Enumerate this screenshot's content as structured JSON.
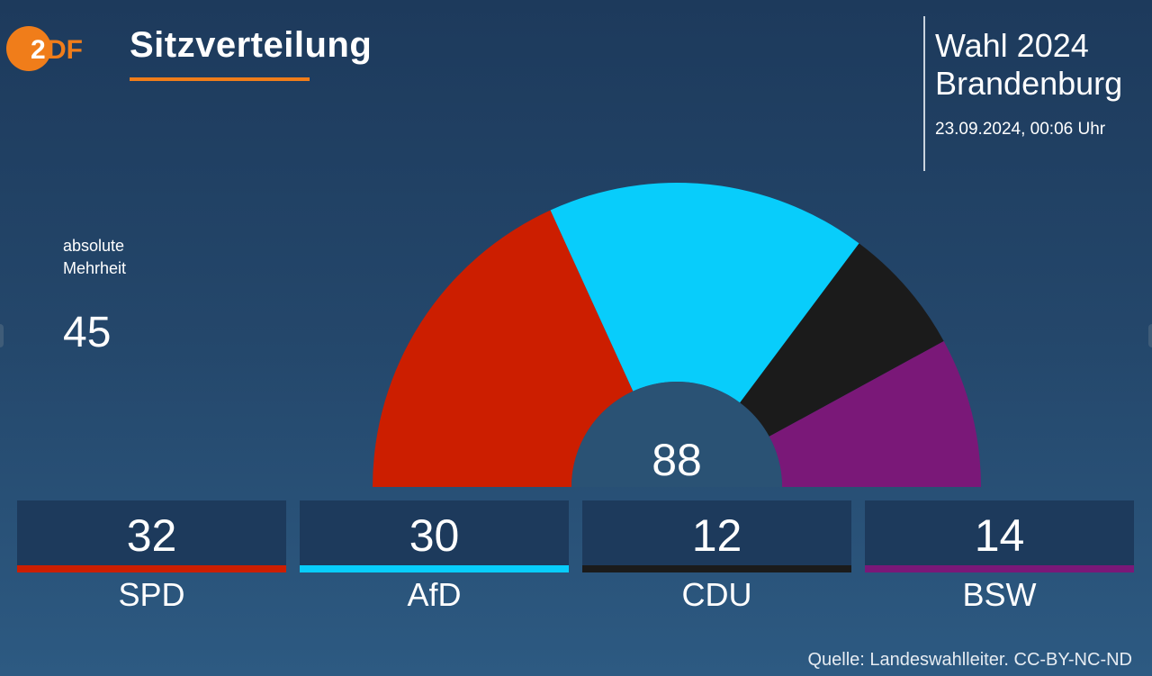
{
  "header": {
    "logo_text": "ZDF",
    "title": "Sitzverteilung",
    "election_line1": "Wahl 2024",
    "election_line2": "Brandenburg",
    "datetime": "23.09.2024, 00:06 Uhr"
  },
  "majority": {
    "label_line1": "absolute",
    "label_line2": "Mehrheit",
    "value": "45"
  },
  "colors": {
    "accent": "#f07d1a",
    "SPD": "#cc1e00",
    "AfD": "#08cdfb",
    "CDU": "#1b1b1b",
    "BSW": "#7a1878"
  },
  "chart_data": {
    "type": "pie",
    "subtype": "semicircle-parliament",
    "total_label": "88",
    "categories": [
      "SPD",
      "AfD",
      "CDU",
      "BSW"
    ],
    "values": [
      32,
      30,
      12,
      14
    ],
    "value_labels": [
      "32",
      "30",
      "12",
      "14"
    ],
    "colors": [
      "#cc1e00",
      "#08cdfb",
      "#1b1b1b",
      "#7a1878"
    ]
  },
  "footer": {
    "source": "Quelle: Landeswahlleiter. CC-BY-NC-ND"
  }
}
